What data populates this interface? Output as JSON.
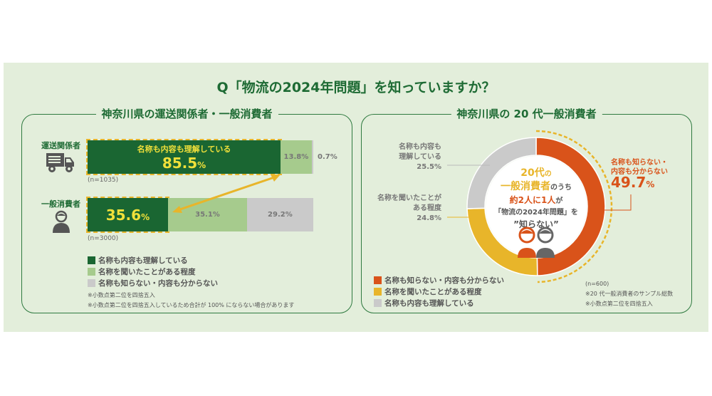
{
  "title": "Q「物流の2024年問題」を知っていますか？",
  "colors": {
    "dark_green": "#1a6632",
    "light_green": "#a6cb8d",
    "gray": "#cacaca",
    "orange": "#d9531a",
    "yellow": "#e8b52a",
    "highlight": "#f0e03a"
  },
  "left": {
    "title": "神奈川県の運送関係者・一般消費者",
    "legend": [
      "名称も内容も理解している",
      "名称を聞いたことがある程度",
      "名称も知らない・内容も分からない"
    ],
    "notes": [
      "※小数点第二位を四捨五入",
      "※小数点第二位を四捨五入しているため合計が 100% にならない場合があります"
    ],
    "rows": [
      {
        "label": "運送関係者",
        "icon": "truck-icon",
        "n": "(n=1035)",
        "inner_label": "名称も内容も理解している",
        "v1": "85.5",
        "v2": "13.8%",
        "v3": "0.7%"
      },
      {
        "label": "一般消費者",
        "icon": "person-icon",
        "n": "(n=3000)",
        "v1": "35.6",
        "v2": "35.1%",
        "v3": "29.2%"
      }
    ],
    "pct": "%"
  },
  "right": {
    "title": "神奈川県の 20 代一般消費者",
    "center": {
      "l1a": "20代",
      "l1b": "の",
      "l2a": "一般消費者",
      "l2b": "のうち",
      "l3a": "約2人に1人",
      "l3b": "が",
      "l4": "「物流の2024年問題」を",
      "l5": "”知らない”"
    },
    "callouts": {
      "understand": {
        "l1": "名称も内容も",
        "l2": "理解している",
        "v": "25.5%"
      },
      "heard": {
        "l1": "名称を聞いたことが",
        "l2": "ある程度",
        "v": "24.8%"
      },
      "unknown": {
        "l1": "名称も知らない・",
        "l2": "内容も分からない",
        "v": "49.7",
        "pct": "%"
      }
    },
    "legend": [
      "名称も知らない・内容も分からない",
      "名称を聞いたことがある程度",
      "名称も内容も理解している"
    ],
    "notes": [
      "(n=600)",
      "※20 代一般消費者のサンプル総数",
      "※小数点第二位を四捨五入"
    ]
  },
  "chart_data": [
    {
      "type": "bar",
      "orientation": "horizontal",
      "stacked": true,
      "categories": [
        "運送関係者",
        "一般消費者"
      ],
      "series": [
        {
          "name": "名称も内容も理解している",
          "values": [
            85.5,
            35.6
          ]
        },
        {
          "name": "名称を聞いたことがある程度",
          "values": [
            13.8,
            35.1
          ]
        },
        {
          "name": "名称も知らない・内容も分からない",
          "values": [
            0.7,
            29.2
          ]
        }
      ]
    },
    {
      "type": "pie",
      "donut": true,
      "labels": [
        "名称も知らない・内容も分からない",
        "名称を聞いたことがある程度",
        "名称も内容も理解している"
      ],
      "values": [
        49.7,
        24.8,
        25.5
      ]
    }
  ]
}
